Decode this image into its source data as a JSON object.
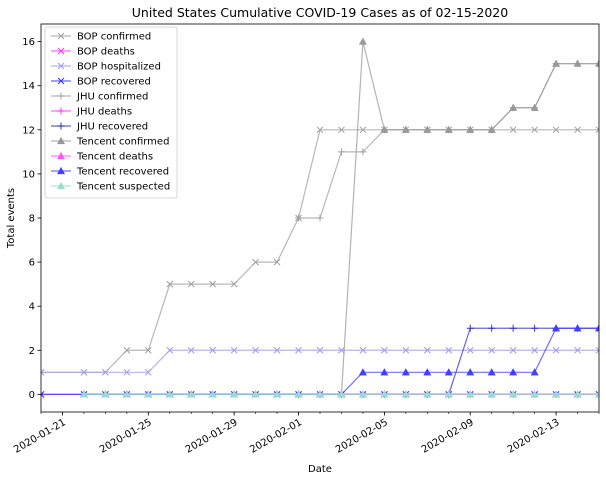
{
  "chart_data": {
    "type": "line",
    "title": "United States Cumulative COVID-19 Cases as of 02-15-2020",
    "xlabel": "Date",
    "ylabel": "Total events",
    "x": [
      "2020-01-20",
      "2020-01-21",
      "2020-01-22",
      "2020-01-23",
      "2020-01-24",
      "2020-01-25",
      "2020-01-26",
      "2020-01-27",
      "2020-01-28",
      "2020-01-29",
      "2020-01-30",
      "2020-01-31",
      "2020-02-01",
      "2020-02-02",
      "2020-02-03",
      "2020-02-04",
      "2020-02-05",
      "2020-02-06",
      "2020-02-07",
      "2020-02-08",
      "2020-02-09",
      "2020-02-10",
      "2020-02-11",
      "2020-02-12",
      "2020-02-13",
      "2020-02-14",
      "2020-02-15"
    ],
    "xlim": [
      "2020-01-20",
      "2020-02-15"
    ],
    "ylim": [
      -0.8,
      16.8
    ],
    "xticks": [
      "2020-01-21",
      "2020-01-25",
      "2020-01-29",
      "2020-02-01",
      "2020-02-05",
      "2020-02-09",
      "2020-02-13"
    ],
    "yticks": [
      0,
      2,
      4,
      6,
      8,
      10,
      12,
      14,
      16
    ],
    "grid": false,
    "legend": "top-left",
    "series": [
      {
        "name": "BOP confirmed",
        "color": "#a0a0a0",
        "marker": "x",
        "values": [
          1,
          null,
          1,
          1,
          2,
          2,
          5,
          5,
          5,
          5,
          6,
          6,
          8,
          12,
          12,
          12,
          12,
          12,
          12,
          12,
          12,
          12,
          12,
          12,
          12,
          12,
          12
        ]
      },
      {
        "name": "BOP deaths",
        "color": "#ff33ff",
        "marker": "x",
        "values": [
          0,
          null,
          0,
          0,
          0,
          0,
          0,
          0,
          0,
          0,
          0,
          0,
          0,
          0,
          0,
          0,
          0,
          0,
          0,
          0,
          0,
          0,
          0,
          0,
          0,
          0,
          0
        ]
      },
      {
        "name": "BOP hospitalized",
        "color": "#a09af0",
        "marker": "x",
        "values": [
          1,
          null,
          1,
          1,
          1,
          1,
          2,
          2,
          2,
          2,
          2,
          2,
          2,
          2,
          2,
          2,
          2,
          2,
          2,
          2,
          2,
          2,
          2,
          2,
          2,
          2,
          2
        ]
      },
      {
        "name": "BOP recovered",
        "color": "#3333ff",
        "marker": "x",
        "values": [
          0,
          null,
          0,
          0,
          0,
          0,
          0,
          0,
          0,
          0,
          0,
          0,
          0,
          0,
          0,
          0,
          0,
          0,
          0,
          0,
          0,
          0,
          0,
          0,
          0,
          0,
          0
        ]
      },
      {
        "name": "JHU confirmed",
        "color": "#a0a0a0",
        "marker": "+",
        "values": [
          null,
          null,
          null,
          null,
          null,
          null,
          null,
          null,
          null,
          null,
          null,
          null,
          8,
          8,
          11,
          11,
          12,
          12,
          12,
          12,
          12,
          12,
          13,
          13,
          15,
          15,
          15
        ]
      },
      {
        "name": "JHU deaths",
        "color": "#ff33ff",
        "marker": "+",
        "values": [
          null,
          null,
          null,
          null,
          null,
          null,
          null,
          null,
          null,
          null,
          null,
          null,
          0,
          0,
          0,
          0,
          0,
          0,
          0,
          0,
          0,
          0,
          0,
          0,
          0,
          0,
          0
        ]
      },
      {
        "name": "JHU recovered",
        "color": "#3333cc",
        "marker": "+",
        "values": [
          null,
          null,
          null,
          null,
          null,
          null,
          null,
          null,
          null,
          null,
          null,
          null,
          0,
          0,
          0,
          0,
          0,
          0,
          0,
          0,
          3,
          3,
          3,
          3,
          3,
          3,
          3
        ]
      },
      {
        "name": "Tencent confirmed",
        "color": "#999999",
        "marker": "^",
        "values": [
          null,
          null,
          0,
          0,
          0,
          0,
          0,
          0,
          0,
          0,
          0,
          0,
          0,
          0,
          0,
          16,
          12,
          12,
          12,
          12,
          12,
          12,
          13,
          13,
          15,
          15,
          15
        ]
      },
      {
        "name": "Tencent deaths",
        "color": "#ff55ff",
        "marker": "^",
        "values": [
          null,
          null,
          0,
          0,
          0,
          0,
          0,
          0,
          0,
          0,
          0,
          0,
          0,
          0,
          0,
          0,
          0,
          0,
          0,
          0,
          0,
          0,
          0,
          0,
          0,
          0,
          0
        ]
      },
      {
        "name": "Tencent recovered",
        "color": "#4040ff",
        "marker": "^",
        "values": [
          null,
          null,
          0,
          0,
          0,
          0,
          0,
          0,
          0,
          0,
          0,
          0,
          0,
          0,
          0,
          1,
          1,
          1,
          1,
          1,
          1,
          1,
          1,
          1,
          3,
          3,
          3
        ]
      },
      {
        "name": "Tencent suspected",
        "color": "#99ddcc",
        "marker": "^",
        "values": [
          null,
          null,
          0,
          0,
          0,
          0,
          0,
          0,
          0,
          0,
          0,
          0,
          0,
          0,
          0,
          0,
          0,
          0,
          0,
          0,
          0,
          0,
          0,
          0,
          0,
          0,
          0
        ]
      }
    ]
  }
}
